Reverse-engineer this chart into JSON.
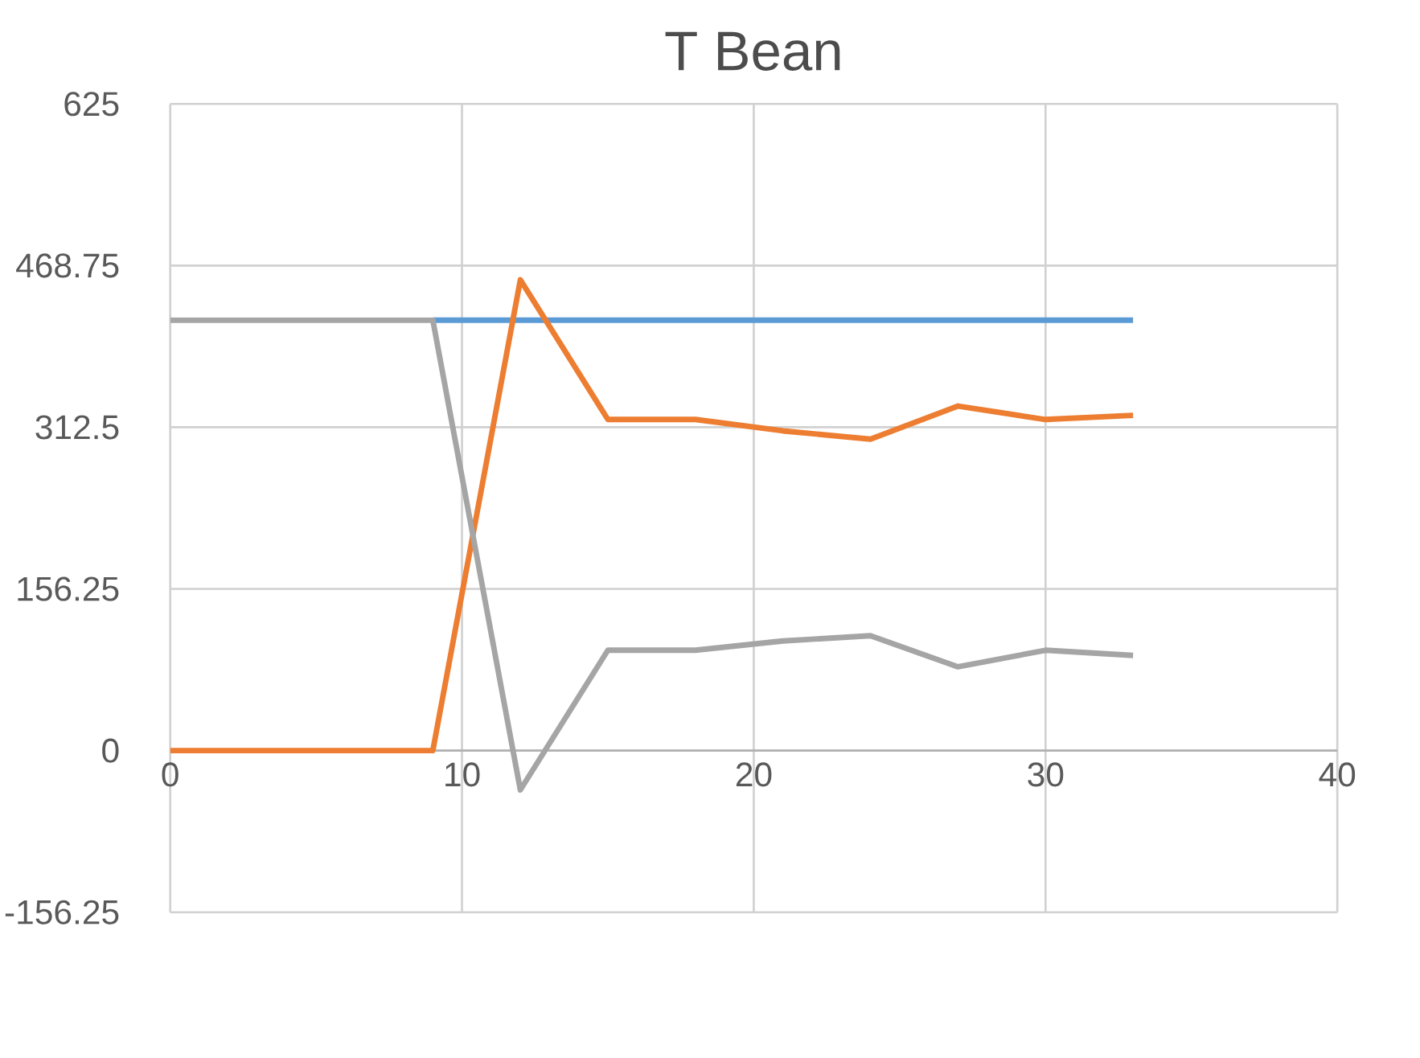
{
  "chart_data": {
    "type": "line",
    "title": "T Bean",
    "xlim": [
      0,
      40
    ],
    "ylim": [
      -156.25,
      625
    ],
    "xticks": [
      0,
      10,
      20,
      30,
      40
    ],
    "yticks": [
      -156.25,
      0,
      156.25,
      312.5,
      468.75,
      625
    ],
    "grid": true,
    "marker": "none",
    "line_style": "solid",
    "series": [
      {
        "color": "#5b9bd5",
        "x": [
          9,
          12,
          15,
          18,
          21,
          24,
          27,
          30,
          33
        ],
        "values": [
          416,
          416,
          416,
          416,
          416,
          416,
          416,
          416,
          416
        ]
      },
      {
        "color": "#ed7d31",
        "x": [
          0,
          3,
          6,
          9,
          12,
          15,
          18,
          21,
          24,
          27,
          30,
          33
        ],
        "values": [
          0,
          0,
          0,
          0,
          455,
          320,
          320,
          309,
          301,
          333,
          320,
          324
        ]
      },
      {
        "color": "#a5a5a5",
        "x": [
          0,
          3,
          6,
          9,
          12,
          15,
          18,
          21,
          24,
          27,
          30,
          33
        ],
        "values": [
          416,
          416,
          416,
          416,
          -38,
          97,
          97,
          106,
          111,
          81,
          97,
          92
        ]
      }
    ]
  }
}
